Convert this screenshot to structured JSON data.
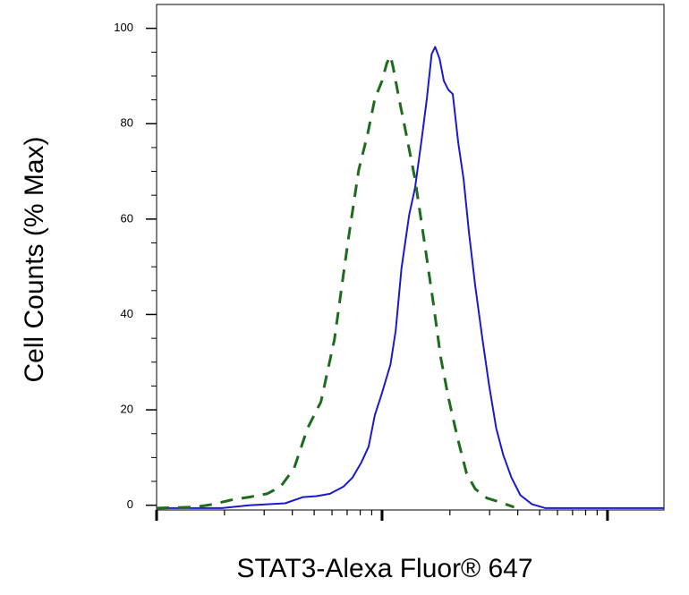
{
  "chart_data": {
    "type": "line",
    "x_label": "STAT3-Alexa Fluor® 647",
    "y_label": "Cell Counts (% Max)",
    "xscale": "log",
    "xlim": [
      1,
      178
    ],
    "xticks": [
      1,
      2,
      3,
      4,
      5,
      6,
      7,
      8,
      9,
      10,
      20,
      30,
      40,
      50,
      60,
      70,
      80,
      90,
      100,
      200
    ],
    "ylim": [
      -1,
      105
    ],
    "yticks": [
      0,
      20,
      40,
      60,
      80,
      100
    ],
    "yminorticks": [
      5,
      10,
      15,
      25,
      30,
      35,
      45,
      50,
      55,
      65,
      70,
      75,
      85,
      90,
      95
    ],
    "series": [
      {
        "color": "#1a1acc",
        "dash": false,
        "x": [
          1.0,
          1.95,
          2.57,
          3.09,
          3.72,
          4.46,
          5.12,
          5.87,
          6.74,
          7.39,
          8.1,
          8.72,
          9.29,
          10.0,
          10.9,
          11.5,
          12.2,
          13.2,
          14.0,
          15.0,
          15.8,
          16.6,
          17.2,
          18.0,
          18.8,
          19.7,
          20.6,
          21.8,
          23.0,
          24.3,
          25.9,
          27.9,
          29.8,
          32.1,
          34.5,
          37.5,
          41.1,
          46.3,
          53.1,
          178
        ],
        "values": [
          -0.6,
          -0.6,
          0,
          0.2,
          0.4,
          1.7,
          1.9,
          2.4,
          3.9,
          5.8,
          9.0,
          12.3,
          18.9,
          23.6,
          29.5,
          36.6,
          49.7,
          60.9,
          66.5,
          76.8,
          85.2,
          94.6,
          96.1,
          93.6,
          89.0,
          87.1,
          86.2,
          75.9,
          68.4,
          57.2,
          46.0,
          34.8,
          25.4,
          16.1,
          10.5,
          5.8,
          2.1,
          0.2,
          -0.6,
          -0.6
        ]
      },
      {
        "color": "#1e6b1e",
        "dash": true,
        "x": [
          1.0,
          1.48,
          1.78,
          2.14,
          2.57,
          3.09,
          3.55,
          4.07,
          4.67,
          5.36,
          6.15,
          7.06,
          7.88,
          8.63,
          9.29,
          10.0,
          10.5,
          10.9,
          11.2,
          11.9,
          12.8,
          14.0,
          15.4,
          16.9,
          18.2,
          19.7,
          21.6,
          23.7,
          25.9,
          29.2,
          33.6,
          38.5
        ],
        "values": [
          -0.6,
          -0.4,
          0.2,
          1.1,
          1.7,
          2.4,
          3.9,
          7.7,
          16.1,
          21.7,
          34.8,
          55.3,
          70.3,
          77.8,
          85.2,
          89.0,
          92.7,
          94.2,
          91.8,
          85.2,
          77.8,
          68.4,
          55.3,
          42.2,
          31.0,
          22.6,
          14.2,
          6.7,
          3.4,
          1.5,
          0.6,
          -0.4
        ]
      }
    ]
  }
}
